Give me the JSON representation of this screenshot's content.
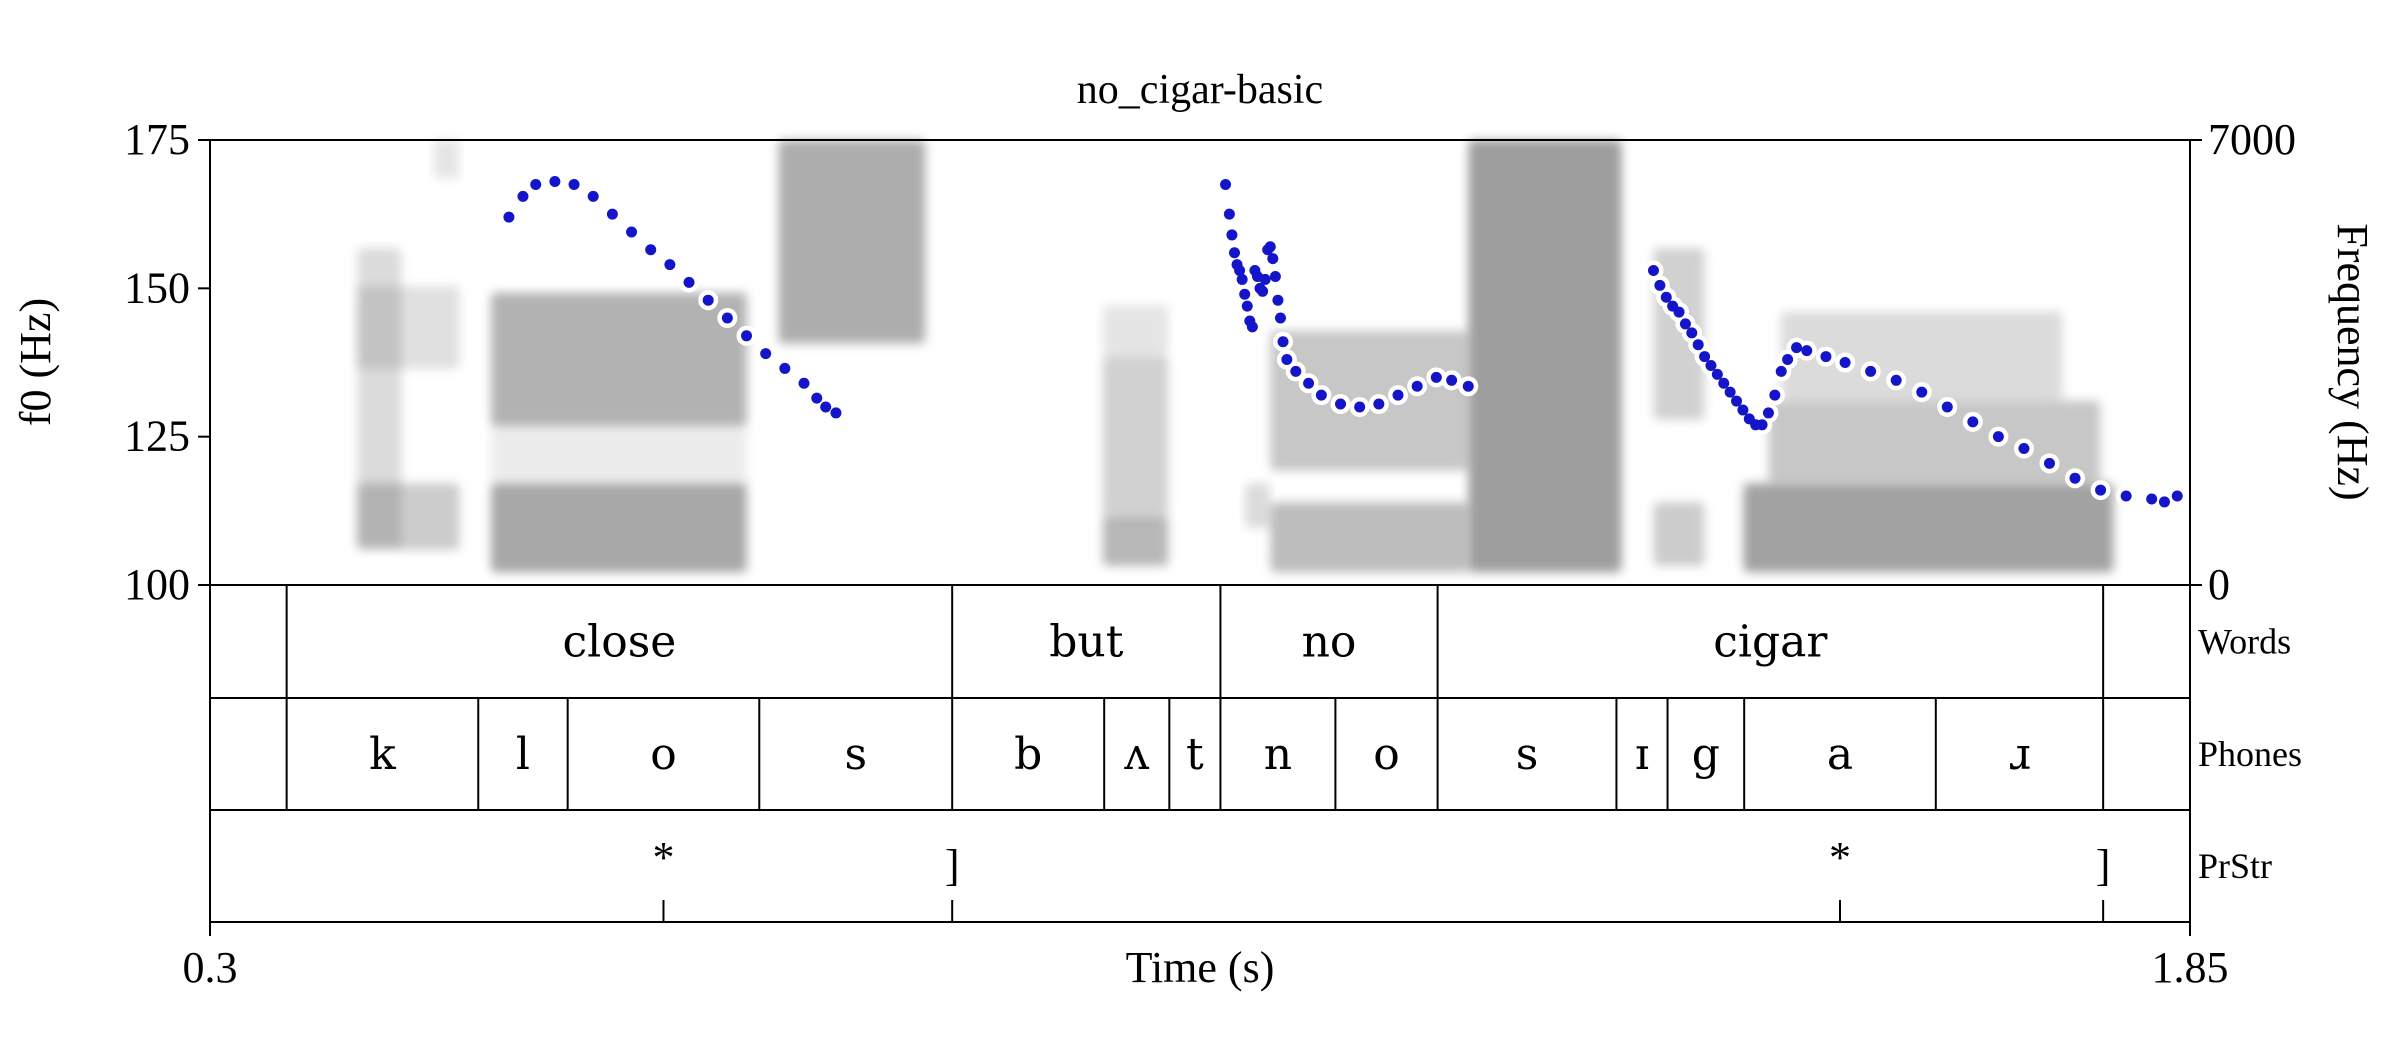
{
  "chart_data": {
    "type": "scatter",
    "title": "no_cigar-basic",
    "xlabel": "Time (s)",
    "ylabel": "f0 (Hz)",
    "ylabel_right": "Frequency (Hz)",
    "xlim": [
      0.3,
      1.85
    ],
    "ylim": [
      100,
      175
    ],
    "ylim_right": [
      0,
      7000
    ],
    "x_tick_labels": [
      "0.3",
      "1.85"
    ],
    "y_tick_labels": [
      "100",
      "125",
      "150",
      "175"
    ],
    "y_tick_values": [
      100,
      125,
      150,
      175
    ],
    "y_right_tick_labels": [
      "0",
      "7000"
    ],
    "point_color": "#1414c8",
    "f0_segments": [
      [
        [
          0.534,
          162
        ],
        [
          0.545,
          165.5
        ],
        [
          0.555,
          167.5
        ],
        [
          0.57,
          168
        ],
        [
          0.585,
          167.5
        ],
        [
          0.6,
          165.5
        ],
        [
          0.615,
          162.5
        ],
        [
          0.63,
          159.5
        ],
        [
          0.645,
          156.5
        ],
        [
          0.66,
          154
        ],
        [
          0.675,
          151
        ],
        [
          0.69,
          148
        ],
        [
          0.705,
          145
        ],
        [
          0.72,
          142
        ],
        [
          0.735,
          139
        ],
        [
          0.75,
          136.5
        ],
        [
          0.765,
          134
        ],
        [
          0.775,
          131.5
        ],
        [
          0.782,
          130
        ],
        [
          0.79,
          129
        ]
      ],
      [
        [
          1.095,
          167.5
        ],
        [
          1.098,
          162.5
        ],
        [
          1.1,
          159
        ],
        [
          1.102,
          156
        ],
        [
          1.104,
          154
        ],
        [
          1.106,
          153
        ],
        [
          1.108,
          151.5
        ],
        [
          1.11,
          149
        ],
        [
          1.112,
          147
        ],
        [
          1.114,
          144.5
        ],
        [
          1.116,
          143.5
        ],
        [
          1.118,
          153
        ],
        [
          1.12,
          152
        ],
        [
          1.122,
          150
        ],
        [
          1.124,
          149.5
        ],
        [
          1.126,
          151.5
        ],
        [
          1.128,
          156.5
        ],
        [
          1.13,
          157
        ],
        [
          1.132,
          155
        ],
        [
          1.134,
          152
        ],
        [
          1.136,
          148
        ],
        [
          1.138,
          145
        ],
        [
          1.14,
          141
        ],
        [
          1.143,
          138
        ],
        [
          1.15,
          136
        ],
        [
          1.16,
          134
        ],
        [
          1.17,
          132
        ],
        [
          1.185,
          130.5
        ],
        [
          1.2,
          130
        ],
        [
          1.215,
          130.5
        ],
        [
          1.23,
          132
        ],
        [
          1.245,
          133.5
        ],
        [
          1.26,
          135
        ],
        [
          1.272,
          134.5
        ],
        [
          1.285,
          133.5
        ]
      ],
      [
        [
          1.43,
          153
        ],
        [
          1.435,
          150.5
        ],
        [
          1.44,
          148.5
        ],
        [
          1.445,
          147
        ],
        [
          1.45,
          146
        ],
        [
          1.455,
          144
        ],
        [
          1.46,
          142.5
        ],
        [
          1.465,
          140.5
        ],
        [
          1.47,
          138.5
        ],
        [
          1.475,
          137
        ],
        [
          1.48,
          135.5
        ],
        [
          1.485,
          134
        ],
        [
          1.49,
          132.5
        ],
        [
          1.495,
          131
        ],
        [
          1.5,
          129.5
        ],
        [
          1.505,
          128
        ],
        [
          1.51,
          127
        ],
        [
          1.515,
          127
        ],
        [
          1.52,
          129
        ],
        [
          1.525,
          132
        ],
        [
          1.53,
          136
        ],
        [
          1.535,
          138
        ],
        [
          1.542,
          140
        ],
        [
          1.55,
          139.5
        ],
        [
          1.565,
          138.5
        ],
        [
          1.58,
          137.5
        ],
        [
          1.6,
          136
        ],
        [
          1.62,
          134.5
        ],
        [
          1.64,
          132.5
        ],
        [
          1.66,
          130
        ],
        [
          1.68,
          127.5
        ],
        [
          1.7,
          125
        ],
        [
          1.72,
          123
        ],
        [
          1.74,
          120.5
        ],
        [
          1.76,
          118
        ],
        [
          1.78,
          116
        ],
        [
          1.8,
          115
        ],
        [
          1.82,
          114.5
        ],
        [
          1.83,
          114
        ],
        [
          1.84,
          115
        ]
      ]
    ],
    "spectrogram_blobs": [
      [
        0.415,
        0.45,
        0.6,
        5.3,
        0.35
      ],
      [
        0.415,
        0.495,
        0.55,
        1.6,
        0.5
      ],
      [
        0.415,
        0.495,
        3.4,
        4.7,
        0.3
      ],
      [
        0.475,
        0.495,
        6.4,
        7.0,
        0.25
      ],
      [
        0.52,
        0.72,
        0.2,
        1.6,
        0.85
      ],
      [
        0.52,
        0.72,
        2.5,
        4.6,
        0.75
      ],
      [
        0.52,
        0.72,
        1.6,
        2.5,
        0.18
      ],
      [
        0.745,
        0.86,
        3.8,
        7.0,
        0.8
      ],
      [
        0.999,
        1.05,
        0.3,
        1.1,
        0.7
      ],
      [
        0.999,
        1.05,
        1.1,
        3.6,
        0.45
      ],
      [
        0.999,
        1.05,
        3.6,
        4.4,
        0.25
      ],
      [
        1.11,
        1.13,
        0.9,
        1.6,
        0.35
      ],
      [
        1.13,
        1.285,
        0.2,
        1.3,
        0.65
      ],
      [
        1.13,
        1.285,
        1.8,
        4.0,
        0.55
      ],
      [
        1.285,
        1.405,
        0.2,
        7.0,
        0.95
      ],
      [
        1.43,
        1.47,
        0.3,
        1.3,
        0.5
      ],
      [
        1.43,
        1.47,
        2.6,
        5.3,
        0.45
      ],
      [
        1.5,
        1.79,
        0.2,
        1.6,
        0.9
      ],
      [
        1.52,
        1.78,
        1.6,
        2.9,
        0.55
      ],
      [
        1.53,
        1.75,
        2.9,
        4.3,
        0.35
      ]
    ]
  },
  "tiers": [
    {
      "name": "Words",
      "boundaries": [
        0.36,
        0.881,
        1.091,
        1.261,
        1.782
      ],
      "labels": [
        {
          "text": "close",
          "x": 0.6205
        },
        {
          "text": "but",
          "x": 0.986
        },
        {
          "text": "no",
          "x": 1.176
        },
        {
          "text": "cigar",
          "x": 1.5215
        }
      ]
    },
    {
      "name": "Phones",
      "boundaries": [
        0.36,
        0.51,
        0.58,
        0.73,
        0.881,
        1.0,
        1.051,
        1.091,
        1.181,
        1.261,
        1.401,
        1.441,
        1.501,
        1.651,
        1.782
      ],
      "labels": [
        {
          "text": "k",
          "x": 0.435
        },
        {
          "text": "l",
          "x": 0.545
        },
        {
          "text": "o",
          "x": 0.655
        },
        {
          "text": "s",
          "x": 0.8055
        },
        {
          "text": "b",
          "x": 0.9405
        },
        {
          "text": "ʌ",
          "x": 1.0255
        },
        {
          "text": "t",
          "x": 1.071
        },
        {
          "text": "n",
          "x": 1.136
        },
        {
          "text": "o",
          "x": 1.221
        },
        {
          "text": "s",
          "x": 1.331
        },
        {
          "text": "ɪ",
          "x": 1.421
        },
        {
          "text": "g",
          "x": 1.471
        },
        {
          "text": "a",
          "x": 1.576
        },
        {
          "text": "ɹ",
          "x": 1.7165
        }
      ]
    },
    {
      "name": "PrStr",
      "points": [
        {
          "text": "*",
          "x": 0.655
        },
        {
          "text": "]",
          "x": 0.881
        },
        {
          "text": "*",
          "x": 1.576
        },
        {
          "text": "]",
          "x": 1.782
        }
      ]
    }
  ]
}
